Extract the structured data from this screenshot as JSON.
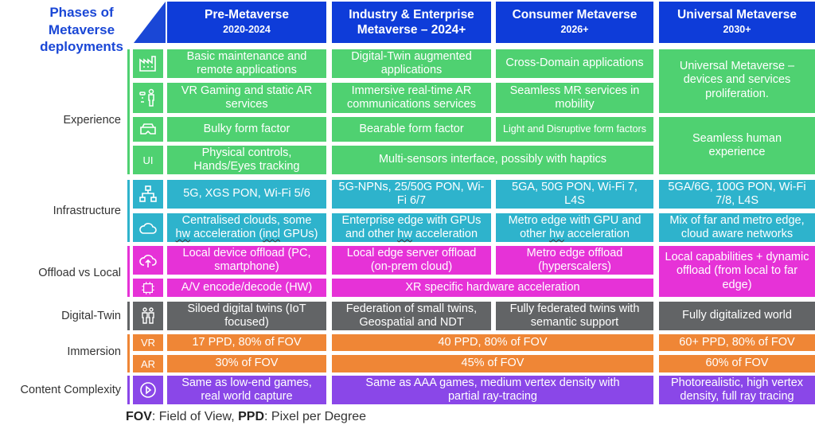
{
  "title": "Phases of Metaverse deployments",
  "phases": [
    {
      "name": "Pre-Metaverse",
      "years": "2020-2024"
    },
    {
      "name": "Industry & Enterprise",
      "name2": "Metaverse – 2024+",
      "years": ""
    },
    {
      "name": "Consumer Metaverse",
      "years": "2026+"
    },
    {
      "name": "Universal Metaverse",
      "years": "2030+"
    }
  ],
  "categories": {
    "experience": "Experience",
    "infrastructure": "Infrastructure",
    "offload": "Offload vs Local",
    "digital_twin": "Digital-Twin",
    "immersion": "Immersion",
    "content": "Content Complexity"
  },
  "icons": {
    "factory": "factory-icon",
    "person": "person-vr-icon",
    "headset": "vr-headset-icon",
    "ui": "UI",
    "network": "network-icon",
    "cloud": "cloud-icon",
    "cloud_upload": "cloud-upload-icon",
    "chip": "chip-icon",
    "twin": "twin-icon",
    "vr": "VR",
    "ar": "AR",
    "play": "play-icon"
  },
  "cells": {
    "exp1": [
      "Basic maintenance and remote applications",
      "Digital-Twin augmented applications",
      "Cross-Domain applications"
    ],
    "exp2": [
      "VR Gaming and static AR services",
      "Immersive real-time AR communications services",
      "Seamless MR services in mobility"
    ],
    "exp3": [
      "Bulky form factor",
      "Bearable form factor",
      "Light and Disruptive form factors"
    ],
    "exp4": [
      "Physical controls, Hands/Eyes tracking",
      "Multi-sensors interface, possibly with haptics"
    ],
    "exp_univ_a": "Universal Metaverse – devices and services proliferation.",
    "exp_univ_b": "Seamless human experience",
    "inf1": [
      "5G, XGS PON, Wi-Fi 5/6",
      "5G-NPNs, 25/50G PON, Wi-Fi 6/7",
      "5GA, 50G PON, Wi-Fi 7, L4S",
      "5GA/6G, 100G PON, Wi-Fi 7/8, L4S"
    ],
    "inf2": [
      {
        "a": "Centralised clouds, some",
        "b1": "",
        "hw": "hw",
        "b2": " acceleration (",
        "incl": "incl",
        "b3": " GPUs)"
      },
      {
        "a": "Enterprise edge with GPUs",
        "b1": "and other ",
        "hw": "hw",
        "b2": " acceleration",
        "incl": "",
        "b3": ""
      },
      {
        "a": "Metro edge with GPU and",
        "b1": "other ",
        "hw": "hw",
        "b2": " acceleration",
        "incl": "",
        "b3": ""
      },
      {
        "a": "Mix of far and metro edge,",
        "b1": "cloud aware networks",
        "hw": "",
        "b2": "",
        "incl": "",
        "b3": ""
      }
    ],
    "off1": [
      "Local device offload (PC, smartphone)",
      "Local edge server offload (on-prem cloud)",
      "Metro edge offload (hyperscalers)"
    ],
    "off_univ": "Local capabilities + dynamic offload (from local to far edge)",
    "off2": [
      "A/V encode/decode (HW)",
      "XR specific hardware acceleration"
    ],
    "twin": [
      "Siloed digital twins (IoT focused)",
      "Federation of small twins, Geospatial and NDT",
      "Fully federated twins with semantic support",
      "Fully digitalized world"
    ],
    "vr": [
      "17 PPD, 80% of FOV",
      "40 PPD, 80% of FOV",
      "60+ PPD, 80% of FOV"
    ],
    "ar": [
      "30% of FOV",
      "45% of FOV",
      "60% of FOV"
    ],
    "content": [
      "Same as low-end games, real world capture",
      "Same as AAA games, medium vertex density with partial ray-tracing",
      "Photorealistic, high vertex density, full ray tracing"
    ]
  },
  "footer": {
    "fov": "FOV",
    "fov_desc": ": Field of View, ",
    "ppd": "PPD",
    "ppd_desc": ": Pixel per Degree"
  },
  "colors": {
    "header": "#0e3cd9",
    "experience": "#4fd171",
    "infrastructure": "#2eb3cc",
    "offload": "#e632d7",
    "digital_twin": "#626466",
    "immersion": "#ef8636",
    "content": "#8a47e8"
  }
}
